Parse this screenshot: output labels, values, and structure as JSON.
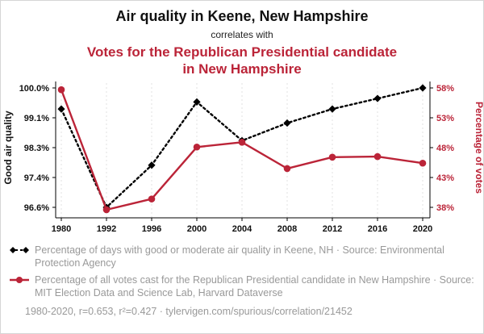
{
  "header": {
    "title": "Air quality in Keene, New Hampshire",
    "subtitle": "correlates with",
    "title2": "Votes for the Republican Presidential candidate in New Hampshire"
  },
  "colors": {
    "accent_red": "#bb2438",
    "series_black": "#000000",
    "muted_gray": "#999999"
  },
  "chart_data": {
    "type": "line",
    "categories": [
      "1980",
      "1992",
      "1996",
      "2000",
      "2004",
      "2008",
      "2012",
      "2016",
      "2020"
    ],
    "series": [
      {
        "name": "air-quality",
        "axis": "left",
        "color": "#000000",
        "style": "dotted",
        "marker": "diamond",
        "values": [
          99.4,
          96.6,
          97.8,
          99.6,
          98.5,
          99.0,
          99.4,
          99.7,
          100.0
        ]
      },
      {
        "name": "republican-votes",
        "axis": "right",
        "color": "#bb2438",
        "style": "solid",
        "marker": "circle",
        "values": [
          57.7,
          37.6,
          39.4,
          48.1,
          48.9,
          44.5,
          46.4,
          46.5,
          45.4
        ]
      }
    ],
    "left_axis": {
      "label": "Good air quality",
      "ticks": [
        "100.0%",
        "99.1%",
        "98.3%",
        "97.4%",
        "96.6%"
      ],
      "min": 96.6,
      "max": 100.0
    },
    "right_axis": {
      "label": "Percentage of votes",
      "ticks": [
        "58%",
        "53%",
        "48%",
        "43%",
        "38%"
      ],
      "min": 38,
      "max": 58
    },
    "grid": "vertical-dotted",
    "legend_position": "bottom"
  },
  "legend": [
    {
      "series": "air-quality",
      "text": "Percentage of days with good or moderate air quality in Keene, NH · Source: Environmental Protection Agency"
    },
    {
      "series": "republican-votes",
      "text": "Percentage of all votes cast for the Republican Presidential candidate in New Hampshire · Source: MIT Election Data and Science Lab, Harvard Dataverse"
    }
  ],
  "footer": {
    "text": "1980-2020, r=0.653, r²=0.427 · tylervigen.com/spurious/correlation/21452"
  }
}
